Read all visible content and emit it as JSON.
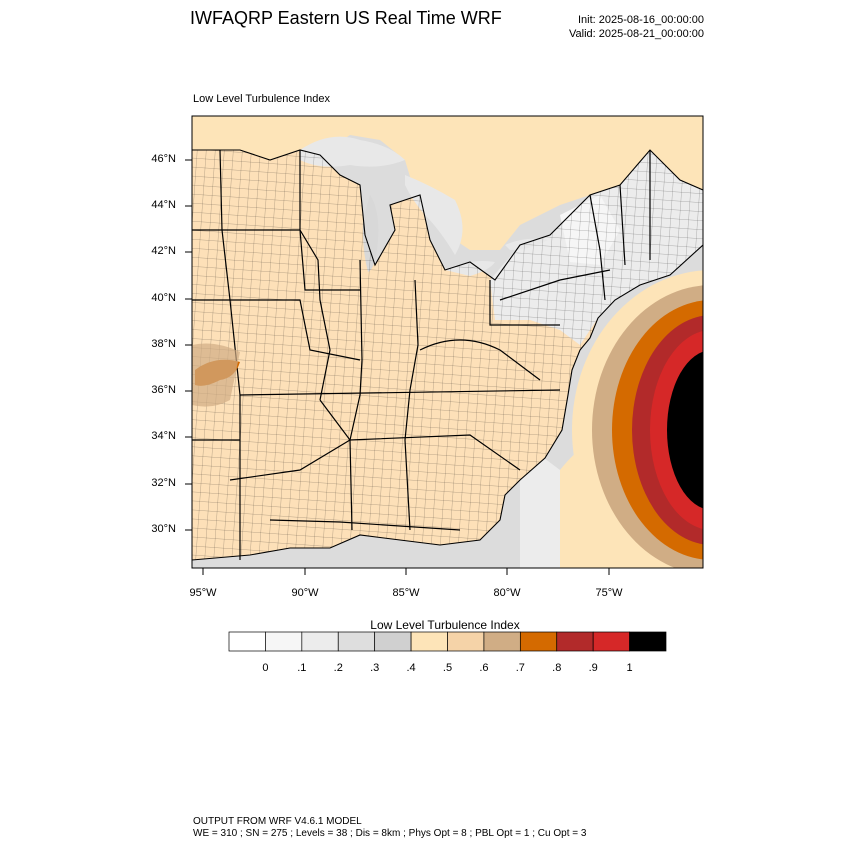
{
  "header": {
    "title": "IWFAQRP Eastern US Real Time WRF",
    "init": "Init: 2025-08-16_00:00:00",
    "valid": "Valid: 2025-08-21_00:00:00",
    "field_label": "Low Level Turbulence Index"
  },
  "map": {
    "lat_labels": [
      "46°N",
      "44°N",
      "42°N",
      "40°N",
      "38°N",
      "36°N",
      "34°N",
      "32°N",
      "30°N"
    ],
    "lon_labels": [
      "95°W",
      "90°W",
      "85°W",
      "80°W",
      "75°W"
    ],
    "colors": {
      "land_base": "#fde0b8",
      "water": "#dcdcdc",
      "lake": "#e8e8e8",
      "county_line": "#000000"
    }
  },
  "colorbar": {
    "title": "Low Level Turbulence Index",
    "colors": [
      "#ffffff",
      "#f6f6f6",
      "#ececec",
      "#dedede",
      "#d0d0d0",
      "#fde4b8",
      "#f5d3a8",
      "#d0ad85",
      "#d46a00",
      "#b22a2a",
      "#d62828",
      "#000000"
    ],
    "ticks": [
      "0",
      ".1",
      ".2",
      ".3",
      ".4",
      ".5",
      ".6",
      ".7",
      ".8",
      ".9",
      "1"
    ]
  },
  "footer": {
    "line1": "OUTPUT FROM WRF V4.6.1 MODEL",
    "line2": "WE = 310 ; SN = 275 ; Levels = 38 ; Dis = 8km ; Phys Opt = 8 ; PBL Opt = 1 ; Cu Opt = 3"
  }
}
